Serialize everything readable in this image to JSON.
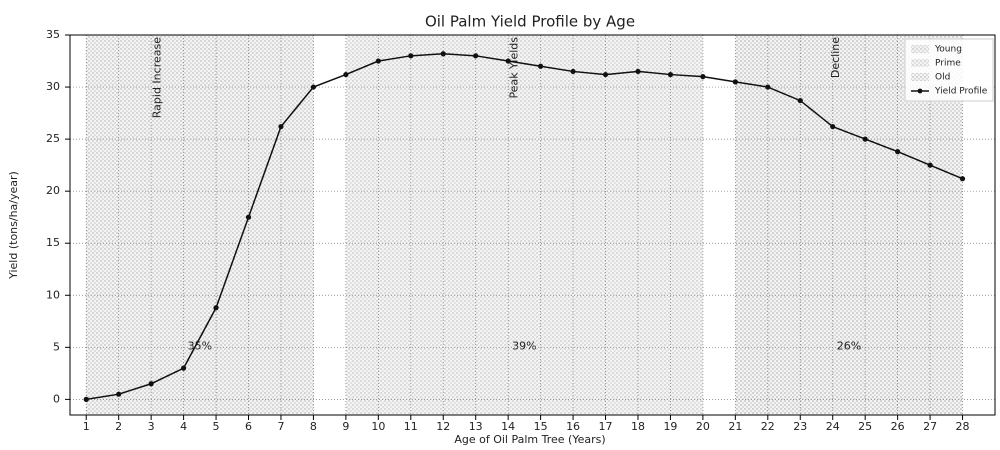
{
  "chart_data": {
    "type": "line",
    "title": "Oil Palm Yield Profile by Age",
    "xlabel": "Age of Oil Palm Tree (Years)",
    "ylabel": "Yield (tons/ha/year)",
    "x": [
      1,
      2,
      3,
      4,
      5,
      6,
      7,
      8,
      9,
      10,
      11,
      12,
      13,
      14,
      15,
      16,
      17,
      18,
      19,
      20,
      21,
      22,
      23,
      24,
      25,
      26,
      27,
      28
    ],
    "series": [
      {
        "name": "Yield Profile",
        "color": "#111111",
        "values": [
          0,
          0.5,
          1.5,
          3,
          8.8,
          17.5,
          26.2,
          30,
          31.2,
          32.5,
          33,
          33.2,
          33,
          32.5,
          32,
          31.5,
          31.2,
          31.5,
          31.2,
          31,
          30.5,
          30,
          28.7,
          26.2,
          25,
          23.8,
          22.5,
          21.2
        ]
      }
    ],
    "regions": [
      {
        "name": "Young",
        "xmin": 1,
        "xmax": 8,
        "color": "#a8a8a8",
        "share": 35,
        "share_label": "35%"
      },
      {
        "name": "Prime",
        "xmin": 9,
        "xmax": 20,
        "color": "#b4b4b4",
        "share": 39,
        "share_label": "39%"
      },
      {
        "name": "Old",
        "xmin": 21,
        "xmax": 28,
        "color": "#a0a0a0",
        "share": 26,
        "share_label": "26%"
      }
    ],
    "annotations": [
      {
        "text": "Rapid Increase",
        "x": 3.2
      },
      {
        "text": "Peak Yields",
        "x": 14.2
      },
      {
        "text": "Decline",
        "x": 24.1
      }
    ],
    "xlim": [
      0.5,
      29
    ],
    "ylim": [
      -1.5,
      35
    ],
    "xticks": [
      1,
      2,
      3,
      4,
      5,
      6,
      7,
      8,
      9,
      10,
      11,
      12,
      13,
      14,
      15,
      16,
      17,
      18,
      19,
      20,
      21,
      22,
      23,
      24,
      25,
      26,
      27,
      28
    ],
    "yticks": [
      0,
      5,
      10,
      15,
      20,
      25,
      30,
      35
    ],
    "grid": true,
    "legend": "upper right"
  }
}
